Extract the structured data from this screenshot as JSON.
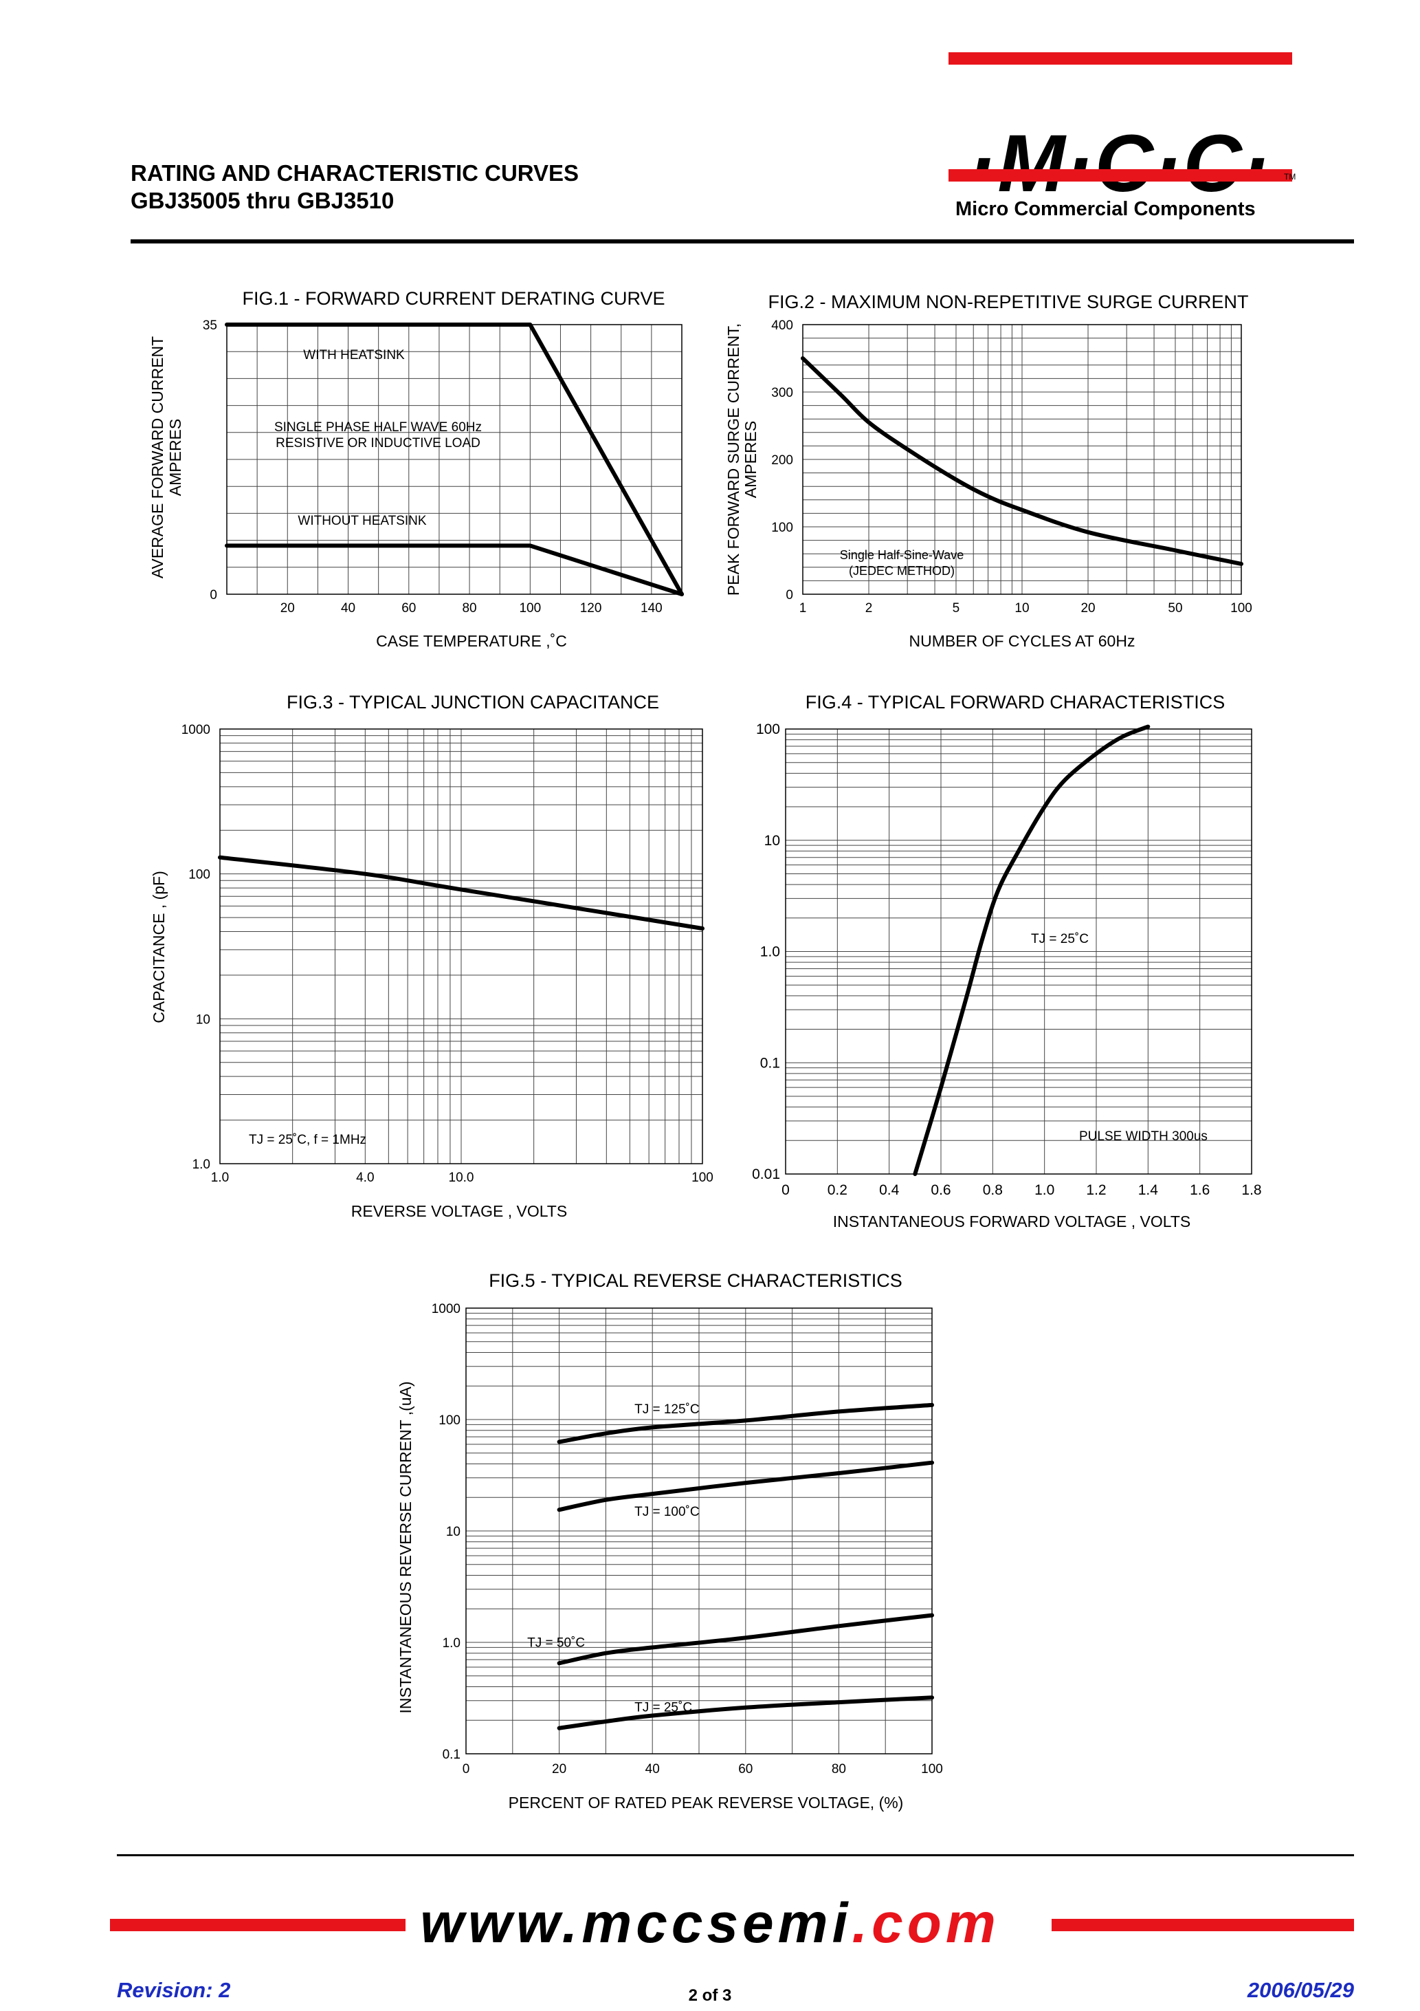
{
  "header": {
    "title_line1": "RATING AND CHARACTERISTIC CURVES",
    "title_line2": "GBJ35005 thru GBJ3510"
  },
  "logo": {
    "text": "·M·C·C·",
    "tm": "TM",
    "company": "Micro Commercial Components",
    "accent_color": "#e8141b"
  },
  "footer": {
    "url_prefix": "www.mccsemi",
    "url_suffix": ".com",
    "page": "2 of 3",
    "revision": "Revision: 2",
    "date": "2006/05/29",
    "text_color": "#1b2cc1"
  },
  "chart_data": [
    {
      "id": "fig1",
      "type": "line",
      "title": "FIG.1 - FORWARD CURRENT DERATING CURVE",
      "xlabel": "CASE TEMPERATURE ,˚C",
      "ylabel_line1": "AVERAGE FORWARD CURRENT",
      "ylabel_line2": "AMPERES",
      "xlim": [
        0,
        150
      ],
      "ylim": [
        0,
        35
      ],
      "xticks": [
        20,
        40,
        60,
        80,
        100,
        120,
        140
      ],
      "xtick_labels": [
        "20",
        "40",
        "60",
        "80",
        "100",
        "120",
        "140"
      ],
      "yticks": [
        0,
        35
      ],
      "ytick_labels": [
        "0",
        "35"
      ],
      "annotations": [
        "WITH HEATSINK",
        "SINGLE PHASE HALF WAVE 60Hz",
        "RESISTIVE OR INDUCTIVE LOAD",
        "WITHOUT HEATSINK"
      ],
      "series": [
        {
          "name": "WITH HEATSINK",
          "x": [
            0,
            100,
            150
          ],
          "y": [
            35,
            35,
            0
          ]
        },
        {
          "name": "WITHOUT HEATSINK",
          "x": [
            0,
            100,
            150
          ],
          "y": [
            6.3,
            6.3,
            0
          ]
        }
      ],
      "grid": true
    },
    {
      "id": "fig2",
      "type": "line",
      "title": "FIG.2 - MAXIMUM NON-REPETITIVE SURGE CURRENT",
      "xlabel": "NUMBER OF CYCLES AT 60Hz",
      "ylabel_line1": "PEAK FORWARD SURGE CURRENT,",
      "ylabel_line2": "AMPERES",
      "xscale": "log",
      "xlim": [
        1,
        100
      ],
      "ylim": [
        0,
        400
      ],
      "xticks": [
        1,
        2,
        5,
        10,
        20,
        50,
        100
      ],
      "xtick_labels": [
        "1",
        "2",
        "5",
        "10",
        "20",
        "50",
        "100"
      ],
      "yticks": [
        0,
        100,
        200,
        300,
        400
      ],
      "ytick_labels": [
        "0",
        "100",
        "200",
        "300",
        "400"
      ],
      "annotations": [
        "Single Half-Sine-Wave",
        "(JEDEC METHOD)"
      ],
      "series": [
        {
          "x": [
            1,
            1.5,
            2,
            3,
            5,
            7,
            10,
            20,
            50,
            100
          ],
          "y": [
            350,
            295,
            255,
            215,
            170,
            145,
            125,
            92,
            65,
            45
          ]
        }
      ],
      "grid": true
    },
    {
      "id": "fig3",
      "type": "line",
      "title": "FIG.3 - TYPICAL JUNCTION CAPACITANCE",
      "xlabel": "REVERSE VOLTAGE , VOLTS",
      "ylabel": "CAPACITANCE , (pF)",
      "xscale": "log",
      "yscale": "log",
      "xlim": [
        1,
        100
      ],
      "ylim": [
        1,
        1000
      ],
      "xticks": [
        1,
        4,
        10,
        100
      ],
      "xtick_labels": [
        "1.0",
        "4.0",
        "10.0",
        "100"
      ],
      "yticks": [
        1,
        10,
        100,
        1000
      ],
      "ytick_labels": [
        "1.0",
        "10",
        "100",
        "1000"
      ],
      "annotations": [
        "TJ = 25˚C,  f = 1MHz"
      ],
      "series": [
        {
          "x": [
            1,
            4,
            10,
            100
          ],
          "y": [
            130,
            100,
            78,
            42
          ]
        }
      ],
      "grid": true
    },
    {
      "id": "fig4",
      "type": "line",
      "title": "FIG.4 - TYPICAL FORWARD CHARACTERISTICS",
      "xlabel": "INSTANTANEOUS FORWARD VOLTAGE , VOLTS",
      "xlim": [
        0,
        1.8
      ],
      "yscale": "log",
      "ylim": [
        0.01,
        100
      ],
      "xticks": [
        0,
        0.2,
        0.4,
        0.6,
        0.8,
        1.0,
        1.2,
        1.4,
        1.6,
        1.8
      ],
      "xtick_labels": [
        "0",
        "0.2",
        "0.4",
        "0.6",
        "0.8",
        "1.0",
        "1.2",
        "1.4",
        "1.6",
        "1.8"
      ],
      "yticks": [
        0.01,
        0.1,
        1,
        10,
        100
      ],
      "ytick_labels": [
        "0.01",
        "0.1",
        "1.0",
        "10",
        "100"
      ],
      "annotations": [
        "TJ = 25˚C",
        "PULSE WIDTH 300us"
      ],
      "series": [
        {
          "x": [
            0.5,
            0.6,
            0.7,
            0.76,
            0.82,
            0.9,
            1.0,
            1.08,
            1.2,
            1.3,
            1.4
          ],
          "y": [
            0.01,
            0.06,
            0.4,
            1.3,
            3.5,
            8,
            20,
            35,
            60,
            85,
            105
          ]
        }
      ],
      "grid": true
    },
    {
      "id": "fig5",
      "type": "line",
      "title": "FIG.5 - TYPICAL REVERSE CHARACTERISTICS",
      "xlabel": "PERCENT OF RATED PEAK REVERSE VOLTAGE, (%)",
      "ylabel": "INSTANTANEOUS REVERSE CURRENT ,(uA)",
      "xlim": [
        0,
        100
      ],
      "yscale": "log",
      "ylim": [
        0.1,
        1000
      ],
      "xticks": [
        0,
        20,
        40,
        60,
        80,
        100
      ],
      "xtick_labels": [
        "0",
        "20",
        "40",
        "60",
        "80",
        "100"
      ],
      "yticks": [
        0.1,
        1,
        10,
        100,
        1000
      ],
      "ytick_labels": [
        "0.1",
        "1.0",
        "10",
        "100",
        "1000"
      ],
      "series": [
        {
          "name": "TJ = 125˚C",
          "x": [
            20,
            30,
            40,
            60,
            80,
            100
          ],
          "y": [
            63,
            75,
            85,
            98,
            118,
            135
          ]
        },
        {
          "name": "TJ = 100˚C",
          "x": [
            20,
            30,
            40,
            60,
            80,
            100
          ],
          "y": [
            15.5,
            19,
            21.5,
            27,
            33,
            41
          ]
        },
        {
          "name": "TJ = 50˚C",
          "x": [
            20,
            30,
            40,
            60,
            80,
            100
          ],
          "y": [
            0.65,
            0.8,
            0.9,
            1.1,
            1.4,
            1.75
          ]
        },
        {
          "name": "TJ = 25˚C",
          "x": [
            20,
            30,
            40,
            60,
            80,
            100
          ],
          "y": [
            0.17,
            0.195,
            0.22,
            0.26,
            0.29,
            0.32
          ]
        }
      ],
      "grid": true
    }
  ]
}
